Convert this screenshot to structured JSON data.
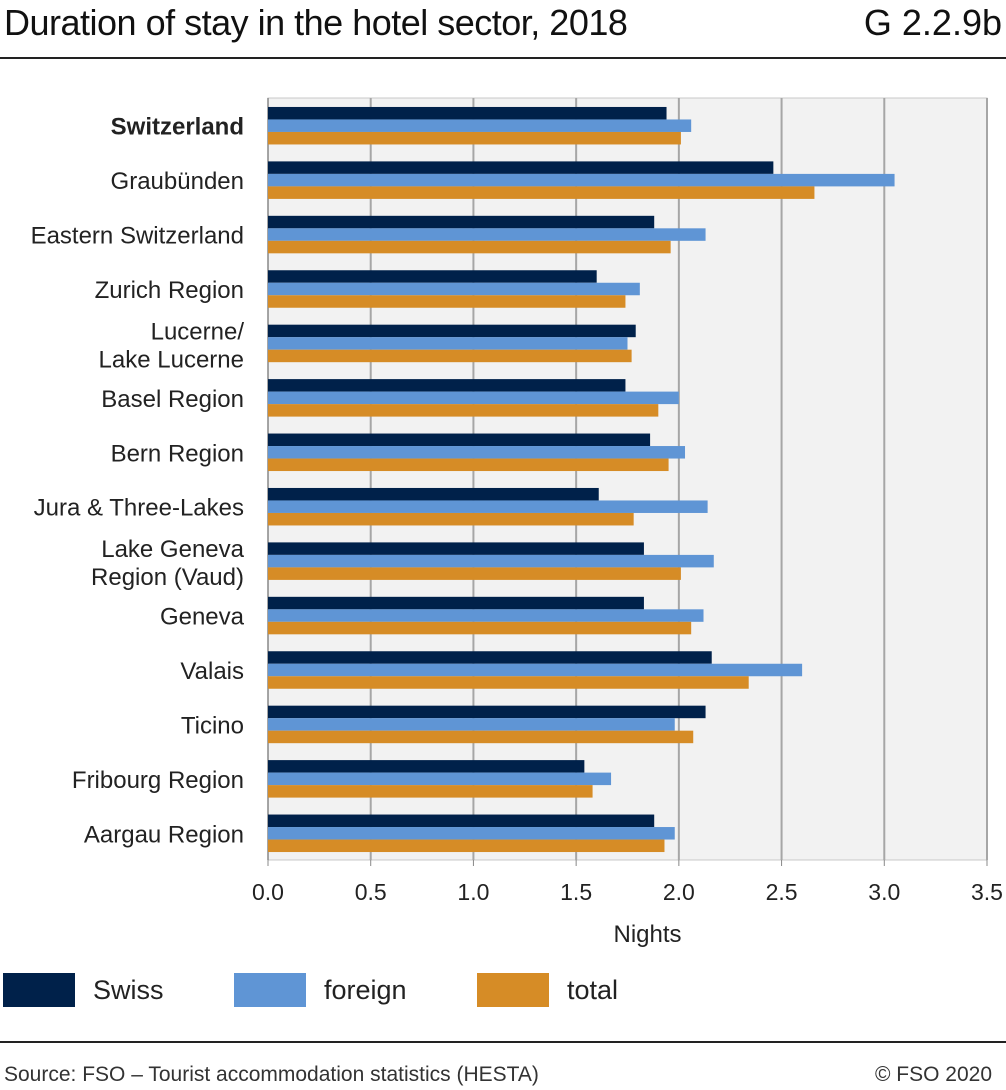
{
  "title": "Duration of stay in the hotel sector, 2018",
  "code": "G 2.2.9b",
  "source": "Source: FSO – Tourist accommodation statistics (HESTA)",
  "copyright": "© FSO 2020",
  "colors": {
    "Swiss": "#00214a",
    "foreign": "#5f95d5",
    "total": "#d68c26",
    "plot_bg": "#f2f2f2",
    "grid": "#a6a6a6"
  },
  "chart_data": {
    "type": "bar",
    "orientation": "horizontal",
    "title": "Duration of stay in the hotel sector, 2018",
    "xlabel": "Nights",
    "ylabel": "",
    "xlim": [
      0,
      3.5
    ],
    "xticks": [
      "0.0",
      "0.5",
      "1.0",
      "1.5",
      "2.0",
      "2.5",
      "3.0",
      "3.5"
    ],
    "grid": true,
    "legend": "bottom",
    "categories": [
      "Switzerland",
      "Graubünden",
      "Eastern Switzerland",
      "Zurich Region",
      "Lucerne/\nLake Lucerne",
      "Basel Region",
      "Bern Region",
      "Jura & Three-Lakes",
      "Lake Geneva\nRegion (Vaud)",
      "Geneva",
      "Valais",
      "Ticino",
      "Fribourg Region",
      "Aargau Region"
    ],
    "series": [
      {
        "name": "Swiss",
        "values": [
          1.94,
          2.46,
          1.88,
          1.6,
          1.79,
          1.74,
          1.86,
          1.61,
          1.83,
          1.83,
          2.16,
          2.13,
          1.54,
          1.88
        ]
      },
      {
        "name": "foreign",
        "values": [
          2.06,
          3.05,
          2.13,
          1.81,
          1.75,
          2.0,
          2.03,
          2.14,
          2.17,
          2.12,
          2.6,
          1.98,
          1.67,
          1.98
        ]
      },
      {
        "name": "total",
        "values": [
          2.01,
          2.66,
          1.96,
          1.74,
          1.77,
          1.9,
          1.95,
          1.78,
          2.01,
          2.06,
          2.34,
          2.07,
          1.58,
          1.93
        ]
      }
    ]
  }
}
